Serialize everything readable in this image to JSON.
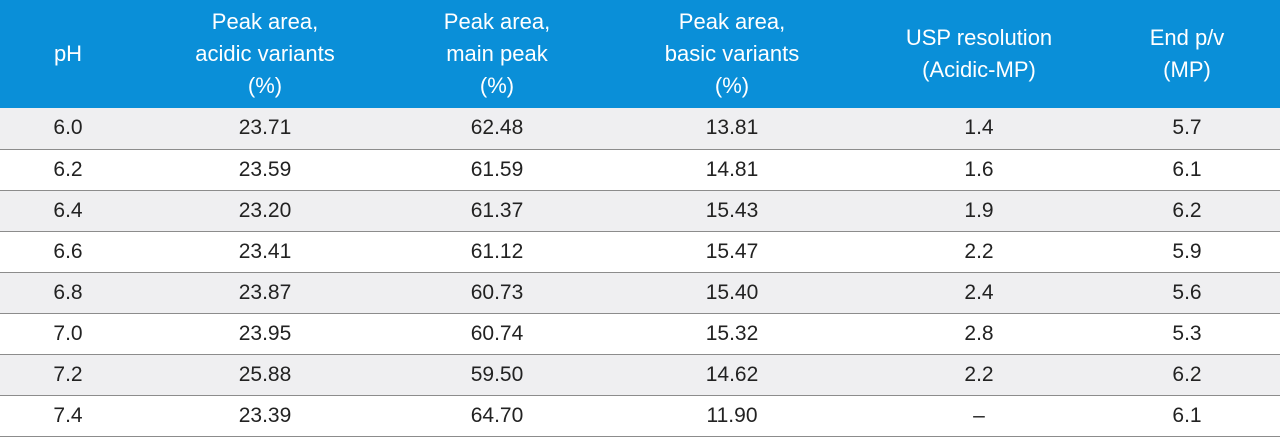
{
  "table": {
    "headers": [
      {
        "lines": [
          "pH"
        ]
      },
      {
        "lines": [
          "Peak area,",
          "acidic variants",
          "(%)"
        ]
      },
      {
        "lines": [
          "Peak area,",
          "main peak",
          "(%)"
        ]
      },
      {
        "lines": [
          "Peak area,",
          "basic variants",
          "(%)"
        ]
      },
      {
        "lines": [
          "USP resolution",
          "(Acidic-MP)"
        ]
      },
      {
        "lines": [
          "End p/v",
          "(MP)"
        ]
      }
    ],
    "rows": [
      [
        "6.0",
        "23.71",
        "62.48",
        "13.81",
        "1.4",
        "5.7"
      ],
      [
        "6.2",
        "23.59",
        "61.59",
        "14.81",
        "1.6",
        "6.1"
      ],
      [
        "6.4",
        "23.20",
        "61.37",
        "15.43",
        "1.9",
        "6.2"
      ],
      [
        "6.6",
        "23.41",
        "61.12",
        "15.47",
        "2.2",
        "5.9"
      ],
      [
        "6.8",
        "23.87",
        "60.73",
        "15.40",
        "2.4",
        "5.6"
      ],
      [
        "7.0",
        "23.95",
        "60.74",
        "15.32",
        "2.8",
        "5.3"
      ],
      [
        "7.2",
        "25.88",
        "59.50",
        "14.62",
        "2.2",
        "6.2"
      ],
      [
        "7.4",
        "23.39",
        "64.70",
        "11.90",
        "–",
        "6.1"
      ]
    ]
  },
  "colors": {
    "header_bg": "#0a8fd8",
    "header_text": "#ffffff",
    "row_alt_bg": "#efeff1",
    "row_border": "#8c8c8c"
  }
}
